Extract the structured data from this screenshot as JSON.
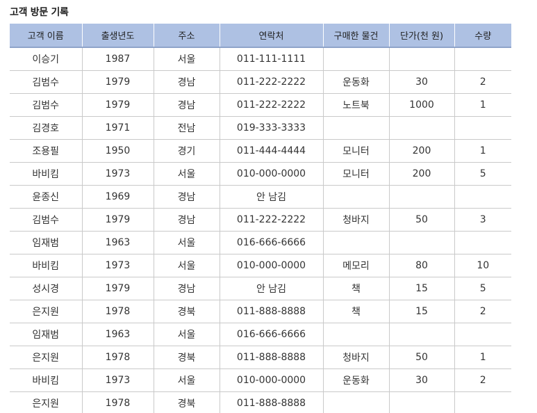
{
  "title": "고객 방문 기록",
  "table": {
    "headers": [
      "고객 이름",
      "출생년도",
      "주소",
      "연락처",
      "구매한 물건",
      "단가(천 원)",
      "수량"
    ],
    "rows": [
      [
        "이승기",
        "1987",
        "서울",
        "011-111-1111",
        "",
        "",
        ""
      ],
      [
        "김범수",
        "1979",
        "경남",
        "011-222-2222",
        "운동화",
        "30",
        "2"
      ],
      [
        "김범수",
        "1979",
        "경남",
        "011-222-2222",
        "노트북",
        "1000",
        "1"
      ],
      [
        "김경호",
        "1971",
        "전남",
        "019-333-3333",
        "",
        "",
        ""
      ],
      [
        "조용필",
        "1950",
        "경기",
        "011-444-4444",
        "모니터",
        "200",
        "1"
      ],
      [
        "바비킴",
        "1973",
        "서울",
        "010-000-0000",
        "모니터",
        "200",
        "5"
      ],
      [
        "윤종신",
        "1969",
        "경남",
        "안 남김",
        "",
        "",
        ""
      ],
      [
        "김범수",
        "1979",
        "경남",
        "011-222-2222",
        "청바지",
        "50",
        "3"
      ],
      [
        "임재범",
        "1963",
        "서울",
        "016-666-6666",
        "",
        "",
        ""
      ],
      [
        "바비킴",
        "1973",
        "서울",
        "010-000-0000",
        "메모리",
        "80",
        "10"
      ],
      [
        "성시경",
        "1979",
        "경남",
        "안 남김",
        "책",
        "15",
        "5"
      ],
      [
        "은지원",
        "1978",
        "경북",
        "011-888-8888",
        "책",
        "15",
        "2"
      ],
      [
        "임재범",
        "1963",
        "서울",
        "016-666-6666",
        "",
        "",
        ""
      ],
      [
        "은지원",
        "1978",
        "경북",
        "011-888-8888",
        "청바지",
        "50",
        "1"
      ],
      [
        "바비킴",
        "1973",
        "서울",
        "010-000-0000",
        "운동화",
        "30",
        "2"
      ],
      [
        "은지원",
        "1978",
        "경북",
        "011-888-8888",
        "",
        "",
        ""
      ]
    ]
  }
}
